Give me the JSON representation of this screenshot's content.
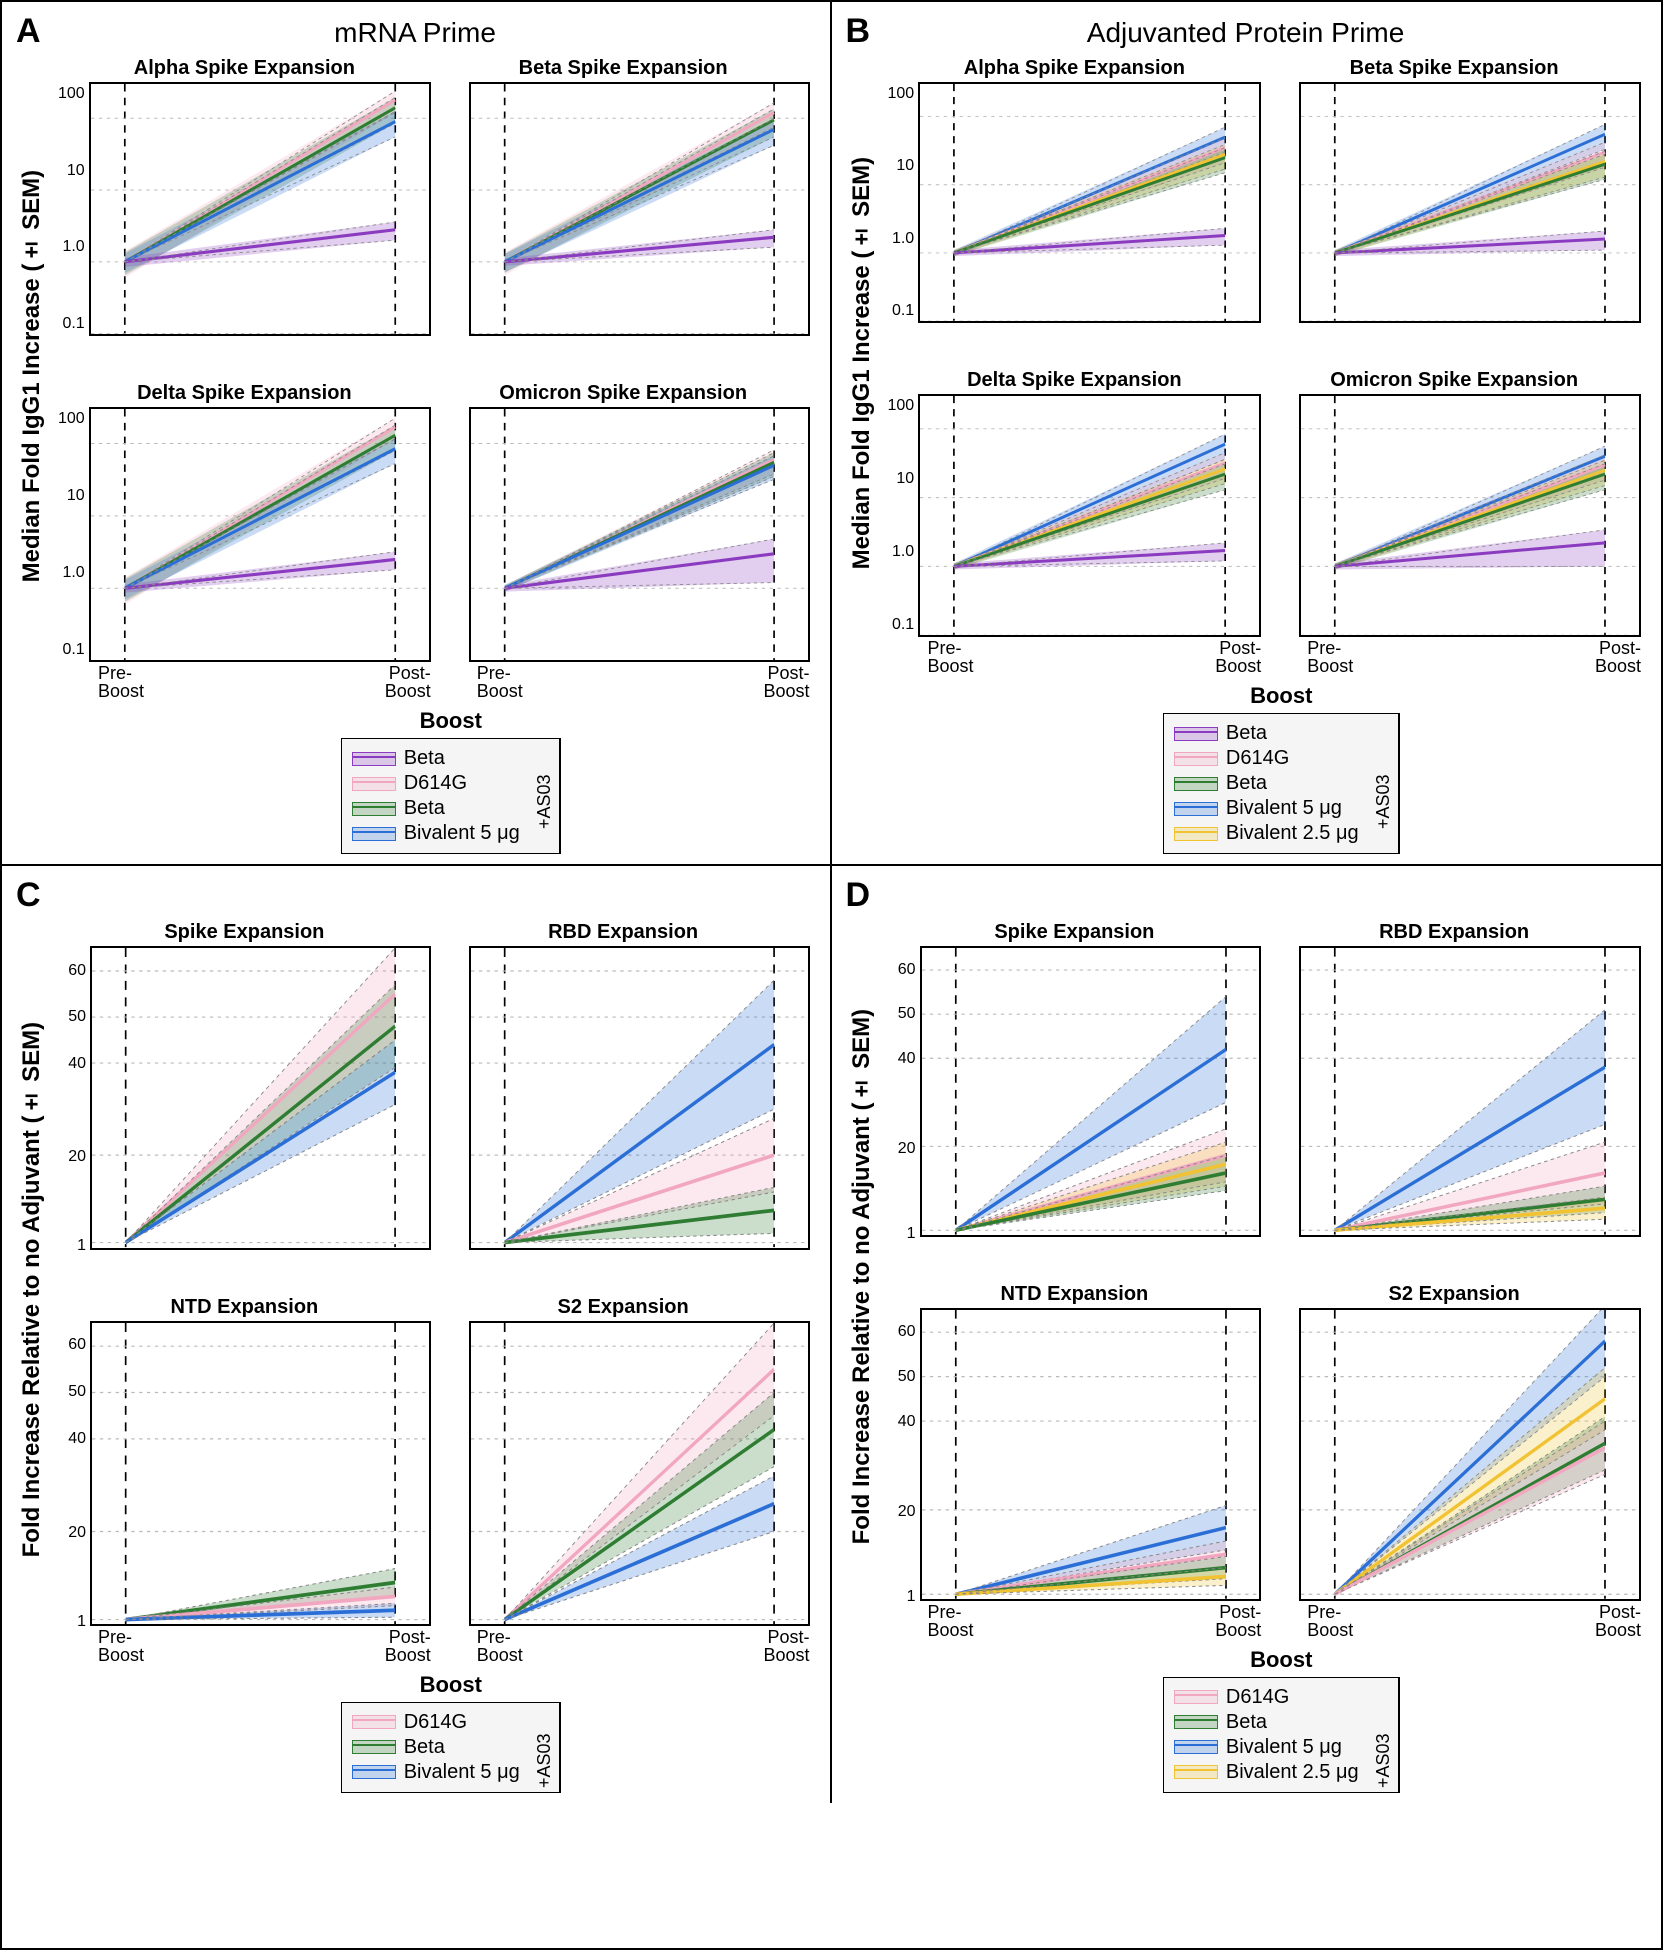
{
  "colors": {
    "beta_plain": "#8b3bbf",
    "d614g": "#f2a7c0",
    "beta_adj": "#2e7d32",
    "biv5": "#2b6fd6",
    "biv25": "#f1c232",
    "axis": "#000000",
    "dashed": "#555555",
    "bg": "#ffffff",
    "legend_bg": "#f5f5f5"
  },
  "columns": {
    "left": {
      "title": "mRNA Prime"
    },
    "right": {
      "title": "Adjuvanted Protein Prime"
    }
  },
  "x_labels": {
    "pre": "Pre-\nBoost",
    "post": "Post-\nBoost"
  },
  "panels": {
    "A": {
      "letter": "A",
      "ylabel": "Median Fold IgG1 Increase (± SEM)",
      "ytype": "log",
      "yticks": [
        "100",
        "10",
        "1.0",
        "0.1"
      ],
      "yrange": [
        0.1,
        300
      ],
      "subplots": [
        {
          "title": "Alpha Spike Expansion",
          "show_yticks": true,
          "show_xticks": false,
          "series": [
            {
              "k": "d614g",
              "y0": 1.0,
              "y1": 180,
              "s0": 0.4,
              "s1": 60
            },
            {
              "k": "beta_adj",
              "y0": 1.0,
              "y1": 140,
              "s0": 0.35,
              "s1": 55
            },
            {
              "k": "biv5",
              "y0": 1.0,
              "y1": 90,
              "s0": 0.3,
              "s1": 35
            },
            {
              "k": "beta_plain",
              "y0": 1.0,
              "y1": 2.8,
              "s0": 0.15,
              "s1": 0.8
            }
          ]
        },
        {
          "title": "Beta Spike Expansion",
          "show_yticks": false,
          "show_xticks": false,
          "series": [
            {
              "k": "d614g",
              "y0": 1.0,
              "y1": 120,
              "s0": 0.35,
              "s1": 45
            },
            {
              "k": "beta_adj",
              "y0": 1.0,
              "y1": 95,
              "s0": 0.3,
              "s1": 40
            },
            {
              "k": "biv5",
              "y0": 1.0,
              "y1": 70,
              "s0": 0.28,
              "s1": 28
            },
            {
              "k": "beta_plain",
              "y0": 1.0,
              "y1": 2.2,
              "s0": 0.12,
              "s1": 0.6
            }
          ]
        },
        {
          "title": "Delta Spike Expansion",
          "show_yticks": true,
          "show_xticks": true,
          "series": [
            {
              "k": "d614g",
              "y0": 1.0,
              "y1": 170,
              "s0": 0.4,
              "s1": 55
            },
            {
              "k": "beta_adj",
              "y0": 1.0,
              "y1": 130,
              "s0": 0.35,
              "s1": 50
            },
            {
              "k": "biv5",
              "y0": 1.0,
              "y1": 85,
              "s0": 0.3,
              "s1": 32
            },
            {
              "k": "beta_plain",
              "y0": 1.0,
              "y1": 2.5,
              "s0": 0.13,
              "s1": 0.7
            }
          ]
        },
        {
          "title": "Omicron Spike Expansion",
          "show_yticks": false,
          "show_xticks": true,
          "series": [
            {
              "k": "d614g",
              "y0": 1.0,
              "y1": 60,
              "s0": 0.1,
              "s1": 22
            },
            {
              "k": "beta_adj",
              "y0": 1.0,
              "y1": 55,
              "s0": 0.1,
              "s1": 20
            },
            {
              "k": "biv5",
              "y0": 1.0,
              "y1": 50,
              "s0": 0.1,
              "s1": 18
            },
            {
              "k": "beta_plain",
              "y0": 1.0,
              "y1": 3.0,
              "s0": 0.1,
              "s1": 1.8
            }
          ]
        }
      ],
      "legend": {
        "title": "Boost",
        "items": [
          {
            "k": "beta_plain",
            "label": "Beta",
            "anno": false
          },
          {
            "k": "d614g",
            "label": "D614G",
            "anno": true
          },
          {
            "k": "beta_adj",
            "label": "Beta",
            "anno": true
          },
          {
            "k": "biv5",
            "label": "Bivalent 5 μg",
            "anno": true
          }
        ],
        "anno_label": "+AS03"
      }
    },
    "B": {
      "letter": "B",
      "ylabel": "Median Fold IgG1 Increase (± SEM)",
      "ytype": "log",
      "yticks": [
        "100",
        "10",
        "1.0",
        "0.1"
      ],
      "yrange": [
        0.1,
        300
      ],
      "subplots": [
        {
          "title": "Alpha Spike Expansion",
          "show_yticks": true,
          "show_xticks": false,
          "series": [
            {
              "k": "biv5",
              "y0": 1.0,
              "y1": 50,
              "s0": 0.1,
              "s1": 20
            },
            {
              "k": "d614g",
              "y0": 1.0,
              "y1": 35,
              "s0": 0.1,
              "s1": 14
            },
            {
              "k": "biv25",
              "y0": 1.0,
              "y1": 28,
              "s0": 0.1,
              "s1": 11
            },
            {
              "k": "beta_adj",
              "y0": 1.0,
              "y1": 25,
              "s0": 0.1,
              "s1": 10
            },
            {
              "k": "beta_plain",
              "y0": 1.0,
              "y1": 1.8,
              "s0": 0.1,
              "s1": 0.5
            }
          ]
        },
        {
          "title": "Beta Spike Expansion",
          "show_yticks": false,
          "show_xticks": false,
          "series": [
            {
              "k": "biv5",
              "y0": 1.0,
              "y1": 55,
              "s0": 0.1,
              "s1": 22
            },
            {
              "k": "d614g",
              "y0": 1.0,
              "y1": 30,
              "s0": 0.1,
              "s1": 12
            },
            {
              "k": "biv25",
              "y0": 1.0,
              "y1": 22,
              "s0": 0.1,
              "s1": 9
            },
            {
              "k": "beta_adj",
              "y0": 1.0,
              "y1": 20,
              "s0": 0.1,
              "s1": 8
            },
            {
              "k": "beta_plain",
              "y0": 1.0,
              "y1": 1.6,
              "s0": 0.1,
              "s1": 0.5
            }
          ]
        },
        {
          "title": "Delta Spike Expansion",
          "show_yticks": true,
          "show_xticks": true,
          "series": [
            {
              "k": "biv5",
              "y0": 1.0,
              "y1": 60,
              "s0": 0.1,
              "s1": 24
            },
            {
              "k": "d614g",
              "y0": 1.0,
              "y1": 32,
              "s0": 0.1,
              "s1": 13
            },
            {
              "k": "biv25",
              "y0": 1.0,
              "y1": 26,
              "s0": 0.1,
              "s1": 10
            },
            {
              "k": "beta_adj",
              "y0": 1.0,
              "y1": 22,
              "s0": 0.1,
              "s1": 9
            },
            {
              "k": "beta_plain",
              "y0": 1.0,
              "y1": 1.7,
              "s0": 0.1,
              "s1": 0.5
            }
          ]
        },
        {
          "title": "Omicron Spike Expansion",
          "show_yticks": false,
          "show_xticks": true,
          "series": [
            {
              "k": "biv5",
              "y0": 1.0,
              "y1": 40,
              "s0": 0.1,
              "s1": 16
            },
            {
              "k": "d614g",
              "y0": 1.0,
              "y1": 30,
              "s0": 0.1,
              "s1": 12
            },
            {
              "k": "biv25",
              "y0": 1.0,
              "y1": 25,
              "s0": 0.1,
              "s1": 10
            },
            {
              "k": "beta_adj",
              "y0": 1.0,
              "y1": 22,
              "s0": 0.1,
              "s1": 9
            },
            {
              "k": "beta_plain",
              "y0": 1.0,
              "y1": 2.2,
              "s0": 0.1,
              "s1": 1.2
            }
          ]
        }
      ],
      "legend": {
        "title": "Boost",
        "items": [
          {
            "k": "beta_plain",
            "label": "Beta",
            "anno": false
          },
          {
            "k": "d614g",
            "label": "D614G",
            "anno": true
          },
          {
            "k": "beta_adj",
            "label": "Beta",
            "anno": true
          },
          {
            "k": "biv5",
            "label": "Bivalent 5 μg",
            "anno": true
          },
          {
            "k": "biv25",
            "label": "Bivalent 2.5 μg",
            "anno": true
          }
        ],
        "anno_label": "+AS03"
      }
    },
    "C": {
      "letter": "C",
      "ylabel": "Fold Increase Relative to no Adjuvant (± SEM)",
      "ytype": "linear",
      "yticks": [
        "60",
        "50",
        "40",
        "20",
        "1"
      ],
      "ytick_positions": [
        60,
        50,
        40,
        20,
        1
      ],
      "yrange": [
        0,
        65
      ],
      "subplots": [
        {
          "title": "Spike Expansion",
          "show_yticks": true,
          "show_xticks": false,
          "series": [
            {
              "k": "d614g",
              "y0": 1,
              "y1": 55,
              "s0": 0,
              "s1": 10
            },
            {
              "k": "beta_adj",
              "y0": 1,
              "y1": 48,
              "s0": 0,
              "s1": 9
            },
            {
              "k": "biv5",
              "y0": 1,
              "y1": 38,
              "s0": 0,
              "s1": 7
            }
          ]
        },
        {
          "title": "RBD Expansion",
          "show_yticks": false,
          "show_xticks": false,
          "series": [
            {
              "k": "biv5",
              "y0": 1,
              "y1": 44,
              "s0": 0,
              "s1": 14
            },
            {
              "k": "d614g",
              "y0": 1,
              "y1": 20,
              "s0": 0,
              "s1": 8
            },
            {
              "k": "beta_adj",
              "y0": 1,
              "y1": 8,
              "s0": 0,
              "s1": 5
            }
          ]
        },
        {
          "title": "NTD Expansion",
          "show_yticks": true,
          "show_xticks": true,
          "series": [
            {
              "k": "beta_adj",
              "y0": 1,
              "y1": 9,
              "s0": 0,
              "s1": 3
            },
            {
              "k": "d614g",
              "y0": 1,
              "y1": 6,
              "s0": 0,
              "s1": 2
            },
            {
              "k": "biv5",
              "y0": 1,
              "y1": 3,
              "s0": 0,
              "s1": 1.5
            }
          ]
        },
        {
          "title": "S2 Expansion",
          "show_yticks": false,
          "show_xticks": true,
          "series": [
            {
              "k": "d614g",
              "y0": 1,
              "y1": 55,
              "s0": 0,
              "s1": 10
            },
            {
              "k": "beta_adj",
              "y0": 1,
              "y1": 42,
              "s0": 0,
              "s1": 8
            },
            {
              "k": "biv5",
              "y0": 1,
              "y1": 26,
              "s0": 0,
              "s1": 6
            }
          ]
        }
      ],
      "legend": {
        "title": "Boost",
        "items": [
          {
            "k": "d614g",
            "label": "D614G",
            "anno": true
          },
          {
            "k": "beta_adj",
            "label": "Beta",
            "anno": true
          },
          {
            "k": "biv5",
            "label": "Bivalent 5 μg",
            "anno": true
          }
        ],
        "anno_label": "+AS03"
      }
    },
    "D": {
      "letter": "D",
      "ylabel": "Fold Increase Relative to no Adjuvant (± SEM)",
      "ytype": "linear",
      "yticks": [
        "60",
        "50",
        "40",
        "20",
        "1"
      ],
      "ytick_positions": [
        60,
        50,
        40,
        20,
        1
      ],
      "yrange": [
        0,
        65
      ],
      "subplots": [
        {
          "title": "Spike Expansion",
          "show_yticks": true,
          "show_xticks": false,
          "series": [
            {
              "k": "biv5",
              "y0": 1,
              "y1": 42,
              "s0": 0,
              "s1": 12
            },
            {
              "k": "d614g",
              "y0": 1,
              "y1": 18,
              "s0": 0,
              "s1": 6
            },
            {
              "k": "biv25",
              "y0": 1,
              "y1": 16,
              "s0": 0,
              "s1": 5
            },
            {
              "k": "beta_adj",
              "y0": 1,
              "y1": 14,
              "s0": 0,
              "s1": 4
            }
          ]
        },
        {
          "title": "RBD Expansion",
          "show_yticks": false,
          "show_xticks": false,
          "series": [
            {
              "k": "biv5",
              "y0": 1,
              "y1": 38,
              "s0": 0,
              "s1": 13
            },
            {
              "k": "d614g",
              "y0": 1,
              "y1": 14,
              "s0": 0,
              "s1": 7
            },
            {
              "k": "beta_adj",
              "y0": 1,
              "y1": 8,
              "s0": 0,
              "s1": 3
            },
            {
              "k": "biv25",
              "y0": 1,
              "y1": 6,
              "s0": 0,
              "s1": 2.5
            }
          ]
        },
        {
          "title": "NTD Expansion",
          "show_yticks": true,
          "show_xticks": true,
          "series": [
            {
              "k": "biv5",
              "y0": 1,
              "y1": 16,
              "s0": 0,
              "s1": 5
            },
            {
              "k": "d614g",
              "y0": 1,
              "y1": 10,
              "s0": 0,
              "s1": 3
            },
            {
              "k": "beta_adj",
              "y0": 1,
              "y1": 7,
              "s0": 0,
              "s1": 2.5
            },
            {
              "k": "biv25",
              "y0": 1,
              "y1": 5,
              "s0": 0,
              "s1": 2
            }
          ]
        },
        {
          "title": "S2 Expansion",
          "show_yticks": false,
          "show_xticks": true,
          "series": [
            {
              "k": "biv5",
              "y0": 1,
              "y1": 58,
              "s0": 0,
              "s1": 8
            },
            {
              "k": "biv25",
              "y0": 1,
              "y1": 45,
              "s0": 0,
              "s1": 7
            },
            {
              "k": "beta_adj",
              "y0": 1,
              "y1": 35,
              "s0": 0,
              "s1": 6
            },
            {
              "k": "d614g",
              "y0": 1,
              "y1": 34,
              "s0": 0,
              "s1": 6
            }
          ]
        }
      ],
      "legend": {
        "title": "Boost",
        "items": [
          {
            "k": "d614g",
            "label": "D614G",
            "anno": true
          },
          {
            "k": "beta_adj",
            "label": "Beta",
            "anno": true
          },
          {
            "k": "biv5",
            "label": "Bivalent 5 μg",
            "anno": true
          },
          {
            "k": "biv25",
            "label": "Bivalent 2.5 μg",
            "anno": true
          }
        ],
        "anno_label": "+AS03"
      }
    }
  }
}
